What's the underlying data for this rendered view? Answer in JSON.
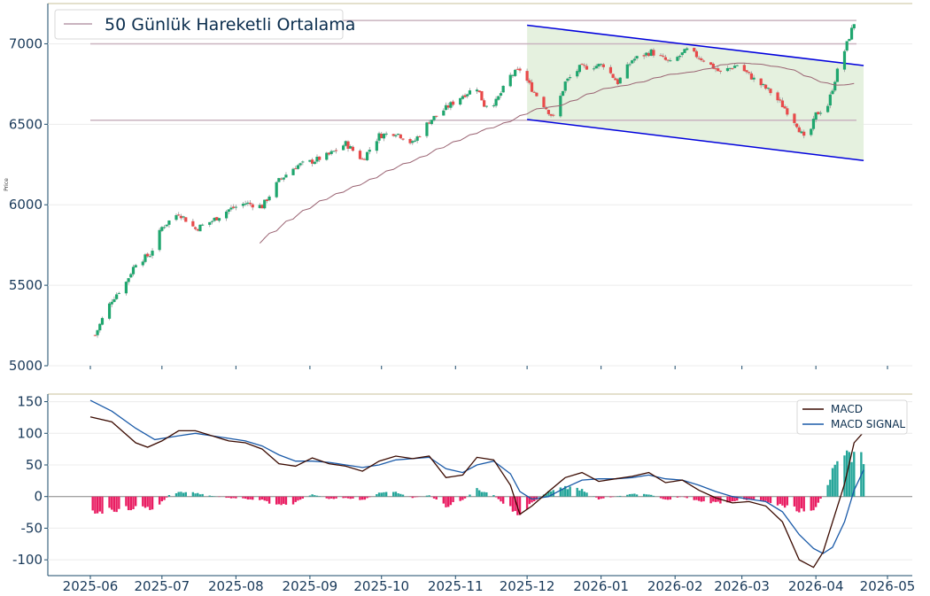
{
  "chart_data": [
    {
      "type": "candlestick",
      "panel": "price",
      "ylabel": "Price",
      "ylim": [
        5000,
        7250
      ],
      "yticks": [
        5000,
        5500,
        6000,
        6500,
        7000
      ],
      "xrange": [
        "2025-06-01",
        "2026-05-01"
      ],
      "legend": {
        "placement": "top-left",
        "entries": [
          {
            "label": "50 Günlük Hareketli Ortalama",
            "color": "#c9b3bf"
          }
        ]
      },
      "horizontal_levels": [
        6525,
        7000,
        7145
      ],
      "channel": {
        "fill": "#e2efdb",
        "upper": [
          [
            "2025-12-01",
            7115
          ],
          [
            "2026-04-21",
            6865
          ]
        ],
        "lower": [
          [
            "2025-12-01",
            6530
          ],
          [
            "2026-04-21",
            6275
          ]
        ]
      },
      "colors": {
        "up": "#1fa66e",
        "down": "#e84a4a",
        "ma": "#9a6372",
        "channel_line": "#0000dd",
        "level": "#c9b3bf"
      },
      "anchors": [
        [
          "2025-06-03",
          5190
        ],
        [
          "2025-06-06",
          5290
        ],
        [
          "2025-06-10",
          5410
        ],
        [
          "2025-06-16",
          5520
        ],
        [
          "2025-06-20",
          5640
        ],
        [
          "2025-06-26",
          5690
        ],
        [
          "2025-07-01",
          5860
        ],
        [
          "2025-07-08",
          5950
        ],
        [
          "2025-07-15",
          5850
        ],
        [
          "2025-07-22",
          5900
        ],
        [
          "2025-07-29",
          5970
        ],
        [
          "2025-08-05",
          6010
        ],
        [
          "2025-08-12",
          5990
        ],
        [
          "2025-08-19",
          6150
        ],
        [
          "2025-08-26",
          6240
        ],
        [
          "2025-09-02",
          6270
        ],
        [
          "2025-09-09",
          6310
        ],
        [
          "2025-09-16",
          6380
        ],
        [
          "2025-09-23",
          6280
        ],
        [
          "2025-09-30",
          6430
        ],
        [
          "2025-10-07",
          6450
        ],
        [
          "2025-10-14",
          6380
        ],
        [
          "2025-10-21",
          6520
        ],
        [
          "2025-10-28",
          6600
        ],
        [
          "2025-11-04",
          6680
        ],
        [
          "2025-11-10",
          6730
        ],
        [
          "2025-11-13",
          6620
        ],
        [
          "2025-11-18",
          6640
        ],
        [
          "2025-11-24",
          6800
        ],
        [
          "2025-11-28",
          6840
        ],
        [
          "2025-12-03",
          6720
        ],
        [
          "2025-12-08",
          6620
        ],
        [
          "2025-12-12",
          6540
        ],
        [
          "2025-12-17",
          6760
        ],
        [
          "2025-12-23",
          6850
        ],
        [
          "2026-01-02",
          6870
        ],
        [
          "2026-01-08",
          6760
        ],
        [
          "2026-01-14",
          6900
        ],
        [
          "2026-01-22",
          6950
        ],
        [
          "2026-01-30",
          6880
        ],
        [
          "2026-02-06",
          6960
        ],
        [
          "2026-02-13",
          6900
        ],
        [
          "2026-02-20",
          6820
        ],
        [
          "2026-02-27",
          6870
        ],
        [
          "2026-03-06",
          6780
        ],
        [
          "2026-03-13",
          6700
        ],
        [
          "2026-03-19",
          6600
        ],
        [
          "2026-03-24",
          6500
        ],
        [
          "2026-03-28",
          6380
        ],
        [
          "2026-04-01",
          6560
        ],
        [
          "2026-04-06",
          6620
        ],
        [
          "2026-04-10",
          6830
        ],
        [
          "2026-04-14",
          7000
        ],
        [
          "2026-04-17",
          7130
        ]
      ]
    },
    {
      "type": "line+bar",
      "panel": "macd",
      "ylim": [
        -125,
        162
      ],
      "yticks": [
        -100,
        -50,
        0,
        50,
        100,
        150
      ],
      "xticks": [
        "2025-06",
        "2025-07",
        "2025-08",
        "2025-09",
        "2025-10",
        "2025-11",
        "2025-12",
        "2026-01",
        "2026-02",
        "2026-03",
        "2026-04",
        "2026-05"
      ],
      "legend": {
        "placement": "top-right"
      },
      "series": [
        {
          "name": "MACD",
          "color": "#3a0a00",
          "points": [
            [
              "2025-06-01",
              126
            ],
            [
              "2025-06-10",
              118
            ],
            [
              "2025-06-20",
              85
            ],
            [
              "2025-06-25",
              78
            ],
            [
              "2025-07-01",
              88
            ],
            [
              "2025-07-08",
              104
            ],
            [
              "2025-07-15",
              104
            ],
            [
              "2025-07-22",
              96
            ],
            [
              "2025-07-29",
              88
            ],
            [
              "2025-08-05",
              85
            ],
            [
              "2025-08-12",
              75
            ],
            [
              "2025-08-19",
              52
            ],
            [
              "2025-08-26",
              48
            ],
            [
              "2025-09-02",
              61
            ],
            [
              "2025-09-09",
              52
            ],
            [
              "2025-09-16",
              48
            ],
            [
              "2025-09-23",
              40
            ],
            [
              "2025-09-30",
              56
            ],
            [
              "2025-10-07",
              64
            ],
            [
              "2025-10-14",
              60
            ],
            [
              "2025-10-21",
              64
            ],
            [
              "2025-10-28",
              30
            ],
            [
              "2025-11-04",
              34
            ],
            [
              "2025-11-10",
              62
            ],
            [
              "2025-11-17",
              58
            ],
            [
              "2025-11-24",
              18
            ],
            [
              "2025-11-28",
              -28
            ],
            [
              "2025-12-03",
              -15
            ],
            [
              "2025-12-10",
              8
            ],
            [
              "2025-12-17",
              30
            ],
            [
              "2025-12-24",
              38
            ],
            [
              "2025-12-31",
              24
            ],
            [
              "2026-01-07",
              28
            ],
            [
              "2026-01-14",
              32
            ],
            [
              "2026-01-21",
              38
            ],
            [
              "2026-01-28",
              22
            ],
            [
              "2026-02-04",
              26
            ],
            [
              "2026-02-11",
              10
            ],
            [
              "2026-02-18",
              -2
            ],
            [
              "2026-02-25",
              -10
            ],
            [
              "2026-03-04",
              -8
            ],
            [
              "2026-03-11",
              -15
            ],
            [
              "2026-03-18",
              -40
            ],
            [
              "2026-03-25",
              -100
            ],
            [
              "2026-03-31",
              -112
            ],
            [
              "2026-04-04",
              -88
            ],
            [
              "2026-04-08",
              -40
            ],
            [
              "2026-04-13",
              20
            ],
            [
              "2026-04-17",
              85
            ],
            [
              "2026-04-21",
              102
            ]
          ]
        },
        {
          "name": "MACD SIGNAL",
          "color": "#1a5aa8",
          "points": [
            [
              "2025-06-01",
              152
            ],
            [
              "2025-06-10",
              135
            ],
            [
              "2025-06-20",
              108
            ],
            [
              "2025-06-28",
              90
            ],
            [
              "2025-07-08",
              96
            ],
            [
              "2025-07-15",
              100
            ],
            [
              "2025-07-22",
              96
            ],
            [
              "2025-07-29",
              92
            ],
            [
              "2025-08-05",
              88
            ],
            [
              "2025-08-12",
              80
            ],
            [
              "2025-08-19",
              66
            ],
            [
              "2025-08-26",
              56
            ],
            [
              "2025-09-02",
              56
            ],
            [
              "2025-09-09",
              54
            ],
            [
              "2025-09-16",
              50
            ],
            [
              "2025-09-23",
              46
            ],
            [
              "2025-09-30",
              50
            ],
            [
              "2025-10-07",
              58
            ],
            [
              "2025-10-14",
              60
            ],
            [
              "2025-10-21",
              62
            ],
            [
              "2025-10-28",
              44
            ],
            [
              "2025-11-04",
              38
            ],
            [
              "2025-11-10",
              50
            ],
            [
              "2025-11-17",
              56
            ],
            [
              "2025-11-24",
              36
            ],
            [
              "2025-11-28",
              8
            ],
            [
              "2025-12-03",
              -4
            ],
            [
              "2025-12-10",
              0
            ],
            [
              "2025-12-17",
              14
            ],
            [
              "2025-12-24",
              26
            ],
            [
              "2025-12-31",
              28
            ],
            [
              "2026-01-07",
              28
            ],
            [
              "2026-01-14",
              30
            ],
            [
              "2026-01-21",
              34
            ],
            [
              "2026-01-28",
              28
            ],
            [
              "2026-02-04",
              26
            ],
            [
              "2026-02-11",
              18
            ],
            [
              "2026-02-18",
              8
            ],
            [
              "2026-02-25",
              0
            ],
            [
              "2026-03-04",
              -4
            ],
            [
              "2026-03-11",
              -8
            ],
            [
              "2026-03-18",
              -24
            ],
            [
              "2026-03-25",
              -60
            ],
            [
              "2026-03-31",
              -82
            ],
            [
              "2026-04-04",
              -90
            ],
            [
              "2026-04-08",
              -80
            ],
            [
              "2026-04-13",
              -40
            ],
            [
              "2026-04-17",
              10
            ],
            [
              "2026-04-21",
              42
            ]
          ]
        },
        {
          "name": "MACD histogram",
          "colors": {
            "positive": "#26a69a",
            "negative": "#e91e63"
          }
        }
      ],
      "histogram_anchors": [
        [
          "2025-06-01",
          -26
        ],
        [
          "2025-06-10",
          -22
        ],
        [
          "2025-06-22",
          -18
        ],
        [
          "2025-06-28",
          -20
        ],
        [
          "2025-07-05",
          6
        ],
        [
          "2025-07-12",
          8
        ],
        [
          "2025-07-20",
          2
        ],
        [
          "2025-07-28",
          -2
        ],
        [
          "2025-08-05",
          -4
        ],
        [
          "2025-08-12",
          -6
        ],
        [
          "2025-08-19",
          -16
        ],
        [
          "2025-08-26",
          -10
        ],
        [
          "2025-09-02",
          4
        ],
        [
          "2025-09-09",
          -4
        ],
        [
          "2025-09-16",
          -2
        ],
        [
          "2025-09-23",
          -6
        ],
        [
          "2025-09-30",
          6
        ],
        [
          "2025-10-07",
          8
        ],
        [
          "2025-10-14",
          -2
        ],
        [
          "2025-10-21",
          2
        ],
        [
          "2025-10-28",
          -16
        ],
        [
          "2025-11-04",
          -6
        ],
        [
          "2025-11-10",
          12
        ],
        [
          "2025-11-17",
          2
        ],
        [
          "2025-11-24",
          -20
        ],
        [
          "2025-11-28",
          -30
        ],
        [
          "2025-12-03",
          -10
        ],
        [
          "2025-12-10",
          8
        ],
        [
          "2025-12-17",
          16
        ],
        [
          "2025-12-24",
          12
        ],
        [
          "2025-12-31",
          -4
        ],
        [
          "2026-01-07",
          0
        ],
        [
          "2026-01-14",
          4
        ],
        [
          "2026-01-21",
          4
        ],
        [
          "2026-01-28",
          -6
        ],
        [
          "2026-02-04",
          0
        ],
        [
          "2026-02-11",
          -8
        ],
        [
          "2026-02-18",
          -10
        ],
        [
          "2026-02-25",
          -10
        ],
        [
          "2026-03-04",
          -4
        ],
        [
          "2026-03-11",
          -8
        ],
        [
          "2026-03-18",
          -16
        ],
        [
          "2026-03-25",
          -22
        ],
        [
          "2026-03-31",
          -28
        ],
        [
          "2026-04-04",
          4
        ],
        [
          "2026-04-08",
          40
        ],
        [
          "2026-04-13",
          62
        ],
        [
          "2026-04-17",
          75
        ],
        [
          "2026-04-21",
          62
        ]
      ]
    }
  ],
  "legend_macd_label": "MACD",
  "legend_signal_label": "MACD SIGNAL"
}
